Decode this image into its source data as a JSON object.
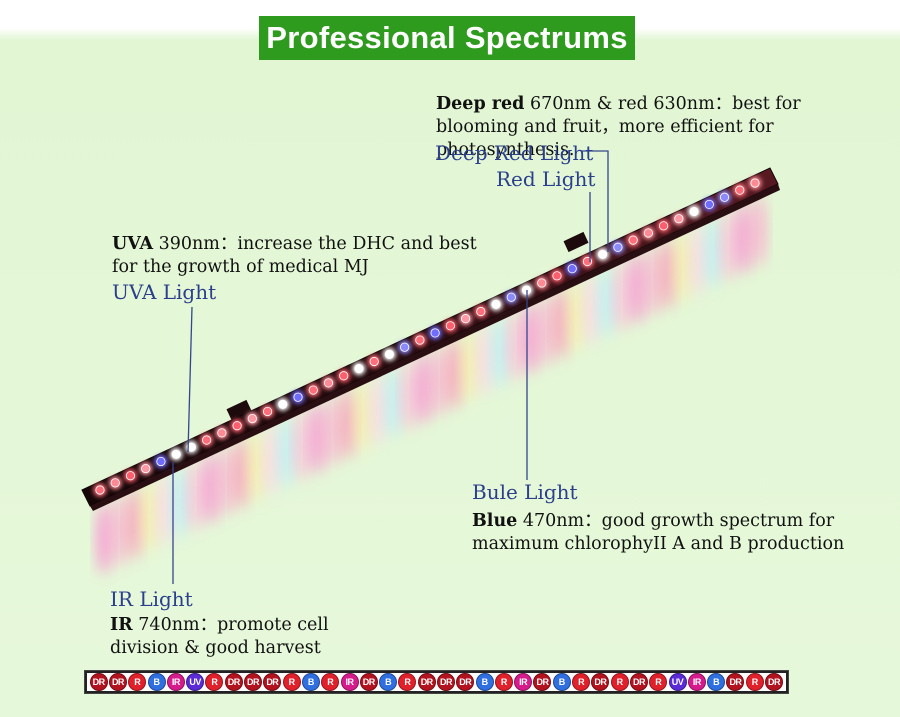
{
  "title": "Professional Spectrums",
  "deep_red": {
    "name": "Deep red",
    "text": " 670nm & red 630nm：best for blooming and fruit，more efficient for photosynthesis."
  },
  "labels": {
    "deep_red_light": "Deep Red Light",
    "red_light": "Red Light",
    "uva_light": "UVA Light",
    "blue_light": "Bule Light",
    "ir_light": "IR Light"
  },
  "uva": {
    "name": "UVA",
    "text": " 390nm：increase the DHC and best for the growth of medical MJ"
  },
  "blue": {
    "name": "Blue",
    "text": " 470nm：good growth spectrum for maximum chlorophyII A and B production"
  },
  "ir": {
    "name": "IR",
    "text": " 740nm：promote cell division & good harvest"
  },
  "led_colors": {
    "DR": "#b3121f",
    "R": "#e0202a",
    "B": "#2f6fe0",
    "IR": "#d61c8c",
    "UV": "#5a2bd6"
  },
  "led_strip": [
    "DR",
    "DR",
    "R",
    "B",
    "IR",
    "UV",
    "R",
    "DR",
    "DR",
    "DR",
    "R",
    "B",
    "R",
    "IR",
    "DR",
    "B",
    "R",
    "DR",
    "DR",
    "DR",
    "B",
    "R",
    "IR",
    "DR",
    "B",
    "R",
    "DR",
    "R",
    "DR",
    "R",
    "UV",
    "IR",
    "B",
    "DR",
    "R",
    "DR"
  ]
}
